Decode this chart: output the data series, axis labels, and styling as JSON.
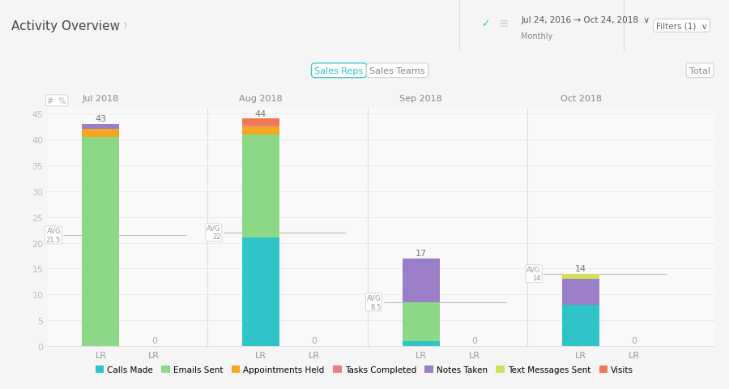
{
  "title": "Activity Overview",
  "months": [
    "Jul 2018",
    "Aug 2018",
    "Sep 2018",
    "Oct 2018"
  ],
  "avg_labels": [
    "AVG\n21.5",
    "AVG\n22",
    "AVG\n8.5",
    "AVG\n14"
  ],
  "avg_values": [
    21.5,
    22,
    8.5,
    14
  ],
  "ylim": [
    0,
    46
  ],
  "yticks": [
    0,
    5,
    10,
    15,
    20,
    25,
    30,
    35,
    40,
    45
  ],
  "colors": {
    "calls_made": "#2EC4C8",
    "emails_sent": "#8CD887",
    "appointments_held": "#F5A623",
    "tasks_completed": "#E87E7E",
    "notes_taken": "#9B7EC8",
    "text_messages_sent": "#D4E157",
    "visits": "#F07850"
  },
  "legend_labels": [
    "Calls Made",
    "Emails Sent",
    "Appointments Held",
    "Tasks Completed",
    "Notes Taken",
    "Text Messages Sent",
    "Visits"
  ],
  "legend_colors": [
    "#2EC4C8",
    "#8CD887",
    "#F5A623",
    "#E87E7E",
    "#9B7EC8",
    "#D4E157",
    "#F07850"
  ],
  "bars": {
    "jul_lr": {
      "calls_made": 0,
      "emails_sent": 40.5,
      "appointments_held": 1.5,
      "tasks_completed": 0,
      "notes_taken": 1,
      "text_messages_sent": 0,
      "visits": 0
    },
    "aug_lr": {
      "calls_made": 21,
      "emails_sent": 20,
      "appointments_held": 1.5,
      "tasks_completed": 0.5,
      "notes_taken": 0,
      "text_messages_sent": 0,
      "visits": 1
    },
    "sep_lr": {
      "calls_made": 1,
      "emails_sent": 7.5,
      "appointments_held": 0,
      "tasks_completed": 0,
      "notes_taken": 8.5,
      "text_messages_sent": 0,
      "visits": 0
    },
    "oct_lr": {
      "calls_made": 8,
      "emails_sent": 0,
      "appointments_held": 0,
      "tasks_completed": 0,
      "notes_taken": 5,
      "text_messages_sent": 1,
      "visits": 0
    }
  }
}
